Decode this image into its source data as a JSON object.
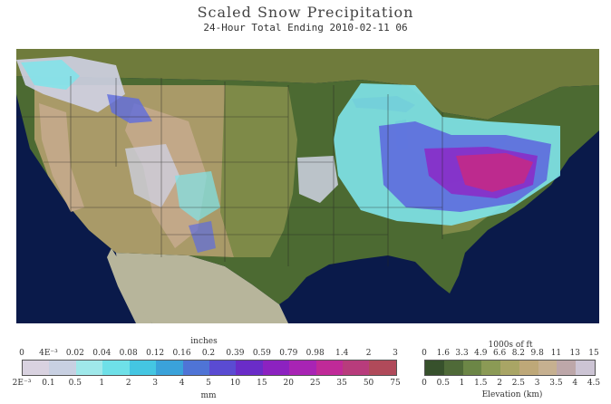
{
  "title": "Scaled Snow Precipitation",
  "subtitle": "24-Hour Total Ending 2010-02-11 06",
  "precip_legend": {
    "top_unit": "inches",
    "bottom_unit": "mm",
    "inches_ticks": [
      "0",
      "4E⁻³",
      "0.02",
      "0.04",
      "0.08",
      "0.12",
      "0.16",
      "0.2",
      "0.39",
      "0.59",
      "0.79",
      "0.98",
      "1.4",
      "2",
      "3"
    ],
    "mm_ticks": [
      "2E⁻³",
      "0.1",
      "0.5",
      "1",
      "2",
      "3",
      "4",
      "5",
      "10",
      "15",
      "20",
      "25",
      "35",
      "50",
      "75"
    ],
    "colors": [
      "#d9d2e0",
      "#c8d0e2",
      "#9fe8ea",
      "#6ee0e8",
      "#44c6e2",
      "#3aa2da",
      "#4f74d6",
      "#5a4bd2",
      "#6a2cc8",
      "#8c22c0",
      "#a824b4",
      "#c02a98",
      "#b83c7c",
      "#b04a5a"
    ]
  },
  "elevation_legend": {
    "top_unit": "1000s of ft",
    "bottom_unit": "Elevation (km)",
    "ft_ticks": [
      "0",
      "1.6",
      "3.3",
      "4.9",
      "6.6",
      "8.2",
      "9.8",
      "11",
      "13",
      "15"
    ],
    "km_ticks": [
      "0",
      "0.5",
      "1",
      "1.5",
      "2",
      "2.5",
      "3",
      "3.5",
      "4",
      "4.5"
    ],
    "colors": [
      "#37512c",
      "#4f6a38",
      "#6c8646",
      "#8b9a55",
      "#a9a565",
      "#bea878",
      "#c6b090",
      "#bda7a9",
      "#ccc4d4"
    ]
  },
  "map_colors": {
    "ocean": "#0a1a4a",
    "lowland": "#4c6a32",
    "plains": "#7e8a48",
    "highland": "#a99a68",
    "mountain": "#c2a888",
    "canada": "#6f7b3c",
    "mexico": "#b7b59b",
    "snow_light": "#cfd2e4",
    "snow_cyan": "#7fe4ea",
    "snow_blue": "#5e6cde",
    "snow_purple": "#8a2ec8",
    "snow_magenta": "#c02a8a",
    "border": "#222222"
  }
}
